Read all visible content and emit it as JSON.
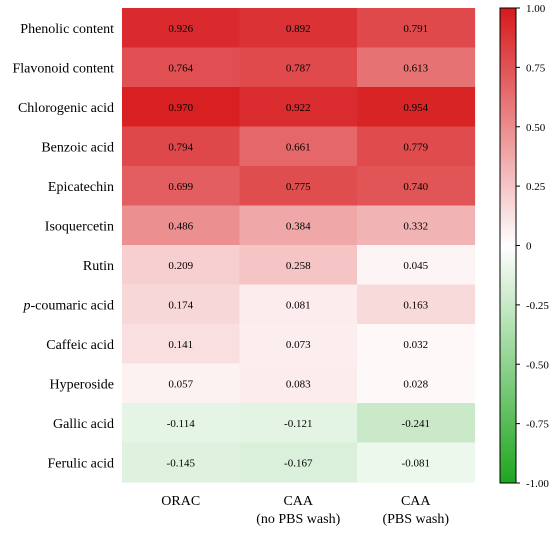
{
  "chart_data": {
    "type": "heatmap",
    "title": "",
    "xlabel": "",
    "ylabel": "",
    "rows": [
      "Phenolic content",
      "Flavonoid content",
      "Chlorogenic acid",
      "Benzoic acid",
      "Epicatechin",
      "Isoquercetin",
      "Rutin",
      "p-coumaric acid",
      "Caffeic acid",
      "Hyperoside",
      "Gallic acid",
      "Ferulic acid"
    ],
    "columns": [
      {
        "line1": "ORAC",
        "line2": ""
      },
      {
        "line1": "CAA",
        "line2": "(no PBS wash)"
      },
      {
        "line1": "CAA",
        "line2": "(PBS wash)"
      }
    ],
    "values": [
      [
        0.926,
        0.892,
        0.791
      ],
      [
        0.764,
        0.787,
        0.613
      ],
      [
        0.97,
        0.922,
        0.954
      ],
      [
        0.794,
        0.661,
        0.779
      ],
      [
        0.699,
        0.775,
        0.74
      ],
      [
        0.486,
        0.384,
        0.332
      ],
      [
        0.209,
        0.258,
        0.045
      ],
      [
        0.174,
        0.081,
        0.163
      ],
      [
        0.141,
        0.073,
        0.032
      ],
      [
        0.057,
        0.083,
        0.028
      ],
      [
        -0.114,
        -0.121,
        -0.241
      ],
      [
        -0.145,
        -0.167,
        -0.081
      ]
    ],
    "value_labels": [
      [
        "0.926",
        "0.892",
        "0.791"
      ],
      [
        "0.764",
        "0.787",
        "0.613"
      ],
      [
        "0.970",
        "0.922",
        "0.954"
      ],
      [
        "0.794",
        "0.661",
        "0.779"
      ],
      [
        "0.699",
        "0.775",
        "0.740"
      ],
      [
        "0.486",
        "0.384",
        "0.332"
      ],
      [
        "0.209",
        "0.258",
        "0.045"
      ],
      [
        "0.174",
        "0.081",
        "0.163"
      ],
      [
        "0.141",
        "0.073",
        "0.032"
      ],
      [
        "0.057",
        "0.083",
        "0.028"
      ],
      [
        "-0.114",
        "-0.121",
        "-0.241"
      ],
      [
        "-0.145",
        "-0.167",
        "-0.081"
      ]
    ],
    "colorbar": {
      "range": [
        -1.0,
        1.0
      ],
      "ticks": [
        1.0,
        0.75,
        0.5,
        0.25,
        0,
        -0.25,
        -0.5,
        -0.75,
        -1.0
      ],
      "tick_labels": [
        "1.00",
        "0.75",
        "0.50",
        "0.25",
        "0",
        "-0.25",
        "-0.50",
        "-0.75",
        "-1.00"
      ],
      "colors": {
        "max": "#d7191c",
        "mid": "#ffffff",
        "min": "#1fa51f"
      }
    },
    "grid": false,
    "legend": "right (colorbar)"
  }
}
